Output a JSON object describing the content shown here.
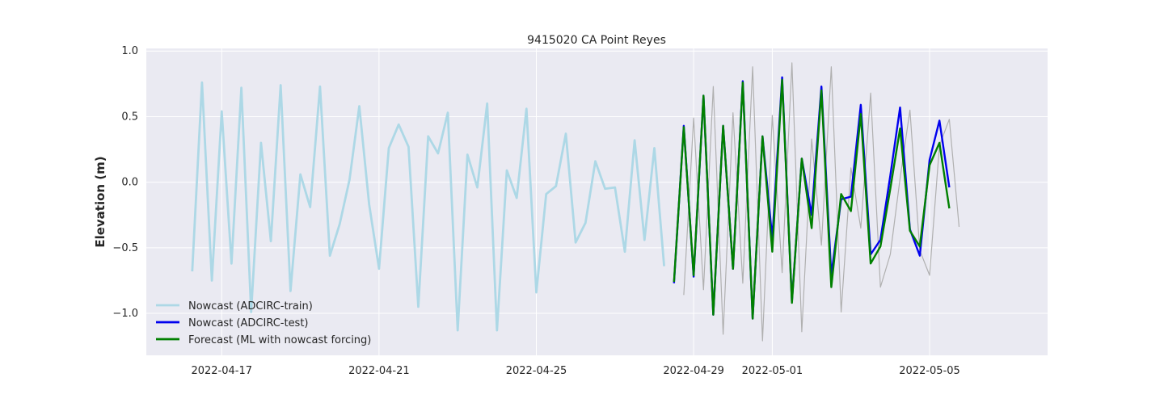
{
  "chart_data": {
    "type": "line",
    "title": "9415020 CA Point Reyes",
    "xlabel": "",
    "ylabel": "Elevation (m)",
    "xlim": [
      "2022-04-15T02:00",
      "2022-05-08T00:00"
    ],
    "ylim": [
      -1.32,
      1.02
    ],
    "yticks": [
      -1.0,
      -0.5,
      0.0,
      0.5,
      1.0
    ],
    "ytick_labels": [
      "−1.0",
      "−0.5",
      "0.0",
      "0.5",
      "1.0"
    ],
    "xticks": [
      "2022-04-17",
      "2022-04-21",
      "2022-04-25",
      "2022-04-29",
      "2022-05-01",
      "2022-05-05"
    ],
    "xtick_labels": [
      "2022-04-17",
      "2022-04-21",
      "2022-04-25",
      "2022-04-29",
      "2022-05-01",
      "2022-05-05"
    ],
    "grid": true,
    "legend_position": "lower-left",
    "series": [
      {
        "name": "Nowcast (ADCIRC-train)",
        "color": "#add8e6",
        "in_legend": true,
        "x": [
          "2022-04-16T06:00",
          "2022-04-16T12:00",
          "2022-04-16T18:00",
          "2022-04-17T00:00",
          "2022-04-17T06:00",
          "2022-04-17T12:00",
          "2022-04-17T18:00",
          "2022-04-18T00:00",
          "2022-04-18T06:00",
          "2022-04-18T12:00",
          "2022-04-18T18:00",
          "2022-04-19T00:00",
          "2022-04-19T06:00",
          "2022-04-19T12:00",
          "2022-04-19T18:00",
          "2022-04-20T00:00",
          "2022-04-20T06:00",
          "2022-04-20T12:00",
          "2022-04-20T18:00",
          "2022-04-21T00:00",
          "2022-04-21T06:00",
          "2022-04-21T12:00",
          "2022-04-21T18:00",
          "2022-04-22T00:00",
          "2022-04-22T06:00",
          "2022-04-22T12:00",
          "2022-04-22T18:00",
          "2022-04-23T00:00",
          "2022-04-23T06:00",
          "2022-04-23T12:00",
          "2022-04-23T18:00",
          "2022-04-24T00:00",
          "2022-04-24T06:00",
          "2022-04-24T12:00",
          "2022-04-24T18:00",
          "2022-04-25T00:00",
          "2022-04-25T06:00",
          "2022-04-25T12:00",
          "2022-04-25T18:00",
          "2022-04-26T00:00",
          "2022-04-26T06:00",
          "2022-04-26T12:00",
          "2022-04-26T18:00",
          "2022-04-27T00:00",
          "2022-04-27T06:00",
          "2022-04-27T12:00",
          "2022-04-27T18:00",
          "2022-04-28T00:00",
          "2022-04-28T06:00"
        ],
        "y": [
          -0.68,
          0.76,
          -0.75,
          0.54,
          -0.62,
          0.72,
          -0.99,
          0.3,
          -0.45,
          0.74,
          -0.83,
          0.06,
          -0.19,
          0.73,
          -0.56,
          -0.32,
          0.02,
          0.58,
          -0.17,
          -0.66,
          0.26,
          0.44,
          0.27,
          -0.95,
          0.35,
          0.22,
          0.53,
          -1.13,
          0.21,
          -0.04,
          0.6,
          -1.13,
          0.09,
          -0.12,
          0.56,
          -0.84,
          -0.09,
          -0.03,
          0.37,
          -0.46,
          -0.31,
          0.16,
          -0.05,
          -0.04,
          -0.53,
          0.32,
          -0.44,
          0.26,
          -0.64
        ]
      },
      {
        "name": "",
        "color": "#b0b0b0",
        "in_legend": false,
        "x": [
          "2022-04-28T18:00",
          "2022-04-29T00:00",
          "2022-04-29T06:00",
          "2022-04-29T12:00",
          "2022-04-29T18:00",
          "2022-04-30T00:00",
          "2022-04-30T06:00",
          "2022-04-30T12:00",
          "2022-04-30T18:00",
          "2022-05-01T00:00",
          "2022-05-01T06:00",
          "2022-05-01T12:00",
          "2022-05-01T18:00",
          "2022-05-02T00:00",
          "2022-05-02T06:00",
          "2022-05-02T12:00",
          "2022-05-02T18:00",
          "2022-05-03T00:00",
          "2022-05-03T06:00",
          "2022-05-03T12:00",
          "2022-05-03T18:00",
          "2022-05-04T00:00",
          "2022-05-04T06:00",
          "2022-05-04T12:00",
          "2022-05-04T18:00",
          "2022-05-05T00:00",
          "2022-05-05T06:00",
          "2022-05-05T12:00",
          "2022-05-05T18:00"
        ],
        "y": [
          -0.86,
          0.49,
          -0.82,
          0.73,
          -1.16,
          0.53,
          -0.77,
          0.88,
          -1.21,
          0.51,
          -0.69,
          0.91,
          -1.14,
          0.33,
          -0.48,
          0.88,
          -0.99,
          0.11,
          -0.35,
          0.68,
          -0.8,
          -0.55,
          0.03,
          0.55,
          -0.52,
          -0.71,
          0.28,
          0.48,
          -0.34
        ]
      },
      {
        "name": "Nowcast (ADCIRC-test)",
        "color": "#0000ee",
        "in_legend": true,
        "x": [
          "2022-04-28T12:00",
          "2022-04-28T18:00",
          "2022-04-29T00:00",
          "2022-04-29T06:00",
          "2022-04-29T12:00",
          "2022-04-29T18:00",
          "2022-04-30T00:00",
          "2022-04-30T06:00",
          "2022-04-30T12:00",
          "2022-04-30T18:00",
          "2022-05-01T00:00",
          "2022-05-01T06:00",
          "2022-05-01T12:00",
          "2022-05-01T18:00",
          "2022-05-02T00:00",
          "2022-05-02T06:00",
          "2022-05-02T12:00",
          "2022-05-02T18:00",
          "2022-05-03T00:00",
          "2022-05-03T06:00",
          "2022-05-03T12:00",
          "2022-05-03T18:00",
          "2022-05-04T00:00",
          "2022-05-04T06:00",
          "2022-05-04T12:00",
          "2022-05-04T18:00",
          "2022-05-05T00:00",
          "2022-05-05T06:00",
          "2022-05-05T12:00"
        ],
        "y": [
          -0.77,
          0.43,
          -0.72,
          0.66,
          -1.01,
          0.43,
          -0.66,
          0.77,
          -1.04,
          0.35,
          -0.43,
          0.8,
          -0.91,
          0.18,
          -0.25,
          0.73,
          -0.71,
          -0.13,
          -0.11,
          0.59,
          -0.55,
          -0.44,
          0.05,
          0.57,
          -0.36,
          -0.56,
          0.17,
          0.47,
          -0.04
        ]
      },
      {
        "name": "Forecast (ML with nowcast forcing)",
        "color": "#008000",
        "in_legend": true,
        "x": [
          "2022-04-28T12:00",
          "2022-04-28T18:00",
          "2022-04-29T00:00",
          "2022-04-29T06:00",
          "2022-04-29T12:00",
          "2022-04-29T18:00",
          "2022-04-30T00:00",
          "2022-04-30T06:00",
          "2022-04-30T12:00",
          "2022-04-30T18:00",
          "2022-05-01T00:00",
          "2022-05-01T06:00",
          "2022-05-01T12:00",
          "2022-05-01T18:00",
          "2022-05-02T00:00",
          "2022-05-02T06:00",
          "2022-05-02T12:00",
          "2022-05-02T18:00",
          "2022-05-03T00:00",
          "2022-05-03T06:00",
          "2022-05-03T12:00",
          "2022-05-03T18:00",
          "2022-05-04T00:00",
          "2022-05-04T06:00",
          "2022-05-04T12:00",
          "2022-05-04T18:00",
          "2022-05-05T00:00",
          "2022-05-05T06:00",
          "2022-05-05T12:00"
        ],
        "y": [
          -0.76,
          0.42,
          -0.71,
          0.66,
          -1.01,
          0.43,
          -0.66,
          0.76,
          -1.04,
          0.35,
          -0.53,
          0.78,
          -0.92,
          0.18,
          -0.35,
          0.7,
          -0.8,
          -0.09,
          -0.22,
          0.52,
          -0.62,
          -0.49,
          -0.05,
          0.41,
          -0.37,
          -0.49,
          0.13,
          0.3,
          -0.2
        ]
      }
    ]
  }
}
